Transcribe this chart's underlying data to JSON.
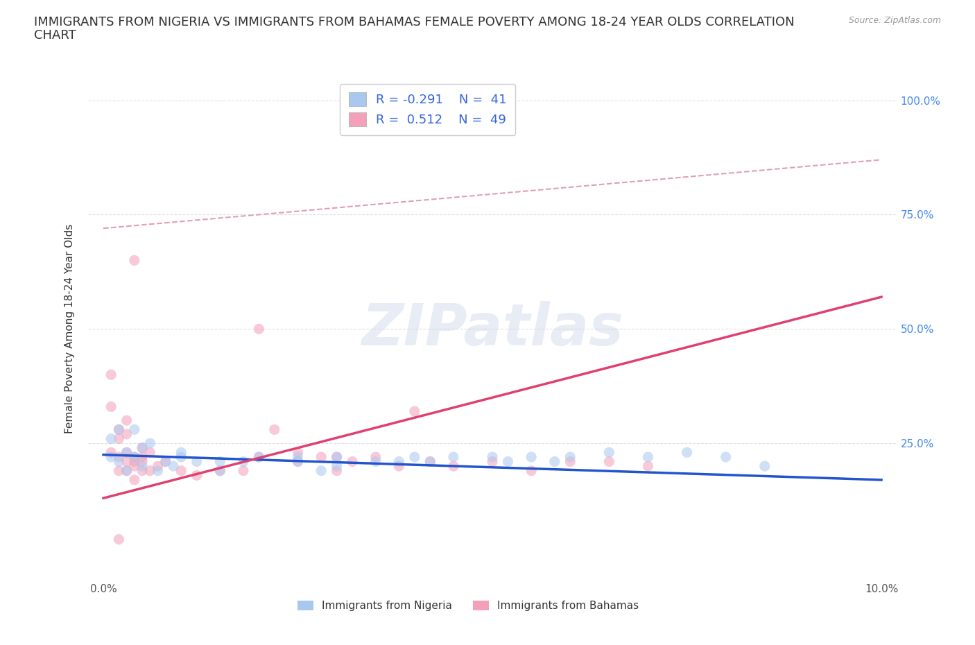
{
  "title": "IMMIGRANTS FROM NIGERIA VS IMMIGRANTS FROM BAHAMAS FEMALE POVERTY AMONG 18-24 YEAR OLDS CORRELATION\nCHART",
  "source": "Source: ZipAtlas.com",
  "ylabel": "Female Poverty Among 18-24 Year Olds",
  "watermark": "ZIPatlas",
  "nigeria_R": -0.291,
  "nigeria_N": 41,
  "bahamas_R": 0.512,
  "bahamas_N": 49,
  "nigeria_color": "#a8c8f0",
  "bahamas_color": "#f4a0b8",
  "nigeria_line_color": "#2255cc",
  "bahamas_line_color": "#e04070",
  "nigeria_scatter": [
    [
      0.001,
      0.22
    ],
    [
      0.001,
      0.26
    ],
    [
      0.002,
      0.28
    ],
    [
      0.002,
      0.21
    ],
    [
      0.003,
      0.19
    ],
    [
      0.003,
      0.23
    ],
    [
      0.004,
      0.22
    ],
    [
      0.004,
      0.28
    ],
    [
      0.005,
      0.2
    ],
    [
      0.005,
      0.24
    ],
    [
      0.006,
      0.25
    ],
    [
      0.007,
      0.19
    ],
    [
      0.008,
      0.21
    ],
    [
      0.009,
      0.2
    ],
    [
      0.01,
      0.22
    ],
    [
      0.01,
      0.23
    ],
    [
      0.012,
      0.21
    ],
    [
      0.015,
      0.21
    ],
    [
      0.015,
      0.19
    ],
    [
      0.018,
      0.21
    ],
    [
      0.02,
      0.22
    ],
    [
      0.025,
      0.21
    ],
    [
      0.025,
      0.22
    ],
    [
      0.028,
      0.19
    ],
    [
      0.03,
      0.22
    ],
    [
      0.03,
      0.2
    ],
    [
      0.035,
      0.21
    ],
    [
      0.038,
      0.21
    ],
    [
      0.04,
      0.22
    ],
    [
      0.042,
      0.21
    ],
    [
      0.045,
      0.22
    ],
    [
      0.05,
      0.22
    ],
    [
      0.052,
      0.21
    ],
    [
      0.055,
      0.22
    ],
    [
      0.058,
      0.21
    ],
    [
      0.06,
      0.22
    ],
    [
      0.065,
      0.23
    ],
    [
      0.07,
      0.22
    ],
    [
      0.075,
      0.23
    ],
    [
      0.08,
      0.22
    ],
    [
      0.085,
      0.2
    ]
  ],
  "bahamas_scatter": [
    [
      0.001,
      0.23
    ],
    [
      0.001,
      0.33
    ],
    [
      0.001,
      0.4
    ],
    [
      0.002,
      0.26
    ],
    [
      0.002,
      0.19
    ],
    [
      0.002,
      0.22
    ],
    [
      0.002,
      0.28
    ],
    [
      0.003,
      0.21
    ],
    [
      0.003,
      0.27
    ],
    [
      0.003,
      0.3
    ],
    [
      0.003,
      0.23
    ],
    [
      0.003,
      0.19
    ],
    [
      0.004,
      0.22
    ],
    [
      0.004,
      0.2
    ],
    [
      0.004,
      0.65
    ],
    [
      0.004,
      0.17
    ],
    [
      0.004,
      0.21
    ],
    [
      0.005,
      0.22
    ],
    [
      0.005,
      0.19
    ],
    [
      0.005,
      0.24
    ],
    [
      0.005,
      0.21
    ],
    [
      0.006,
      0.19
    ],
    [
      0.006,
      0.23
    ],
    [
      0.007,
      0.2
    ],
    [
      0.008,
      0.21
    ],
    [
      0.01,
      0.19
    ],
    [
      0.012,
      0.18
    ],
    [
      0.015,
      0.19
    ],
    [
      0.018,
      0.19
    ],
    [
      0.02,
      0.22
    ],
    [
      0.02,
      0.5
    ],
    [
      0.022,
      0.28
    ],
    [
      0.025,
      0.21
    ],
    [
      0.025,
      0.23
    ],
    [
      0.028,
      0.22
    ],
    [
      0.03,
      0.19
    ],
    [
      0.03,
      0.22
    ],
    [
      0.032,
      0.21
    ],
    [
      0.035,
      0.22
    ],
    [
      0.038,
      0.2
    ],
    [
      0.04,
      0.32
    ],
    [
      0.042,
      0.21
    ],
    [
      0.045,
      0.2
    ],
    [
      0.05,
      0.21
    ],
    [
      0.055,
      0.19
    ],
    [
      0.06,
      0.21
    ],
    [
      0.065,
      0.21
    ],
    [
      0.07,
      0.2
    ],
    [
      0.002,
      0.04
    ]
  ],
  "xlim": [
    -0.002,
    0.102
  ],
  "ylim": [
    -0.05,
    1.05
  ],
  "xticks": [
    0.0,
    0.02,
    0.04,
    0.06,
    0.08,
    0.1
  ],
  "xticklabels": [
    "0.0%",
    "",
    "",
    "",
    "",
    "10.0%"
  ],
  "yticks": [
    0.0,
    0.25,
    0.5,
    0.75,
    1.0
  ],
  "right_yticklabels": [
    "",
    "25.0%",
    "50.0%",
    "75.0%",
    "100.0%"
  ],
  "bg_color": "#ffffff",
  "title_fontsize": 13,
  "axis_fontsize": 11,
  "tick_fontsize": 11,
  "scatter_size": 120,
  "scatter_alpha": 0.55,
  "nigeria_trend_x": [
    0.0,
    0.1
  ],
  "nigeria_trend_y": [
    0.225,
    0.17
  ],
  "bahamas_trend_x": [
    0.0,
    0.1
  ],
  "bahamas_trend_y": [
    0.13,
    0.57
  ],
  "dashed_line_x": [
    0.0,
    0.1
  ],
  "dashed_line_y": [
    0.72,
    0.87
  ],
  "dashed_line_color": "#e0a0b0",
  "grid_line_y": [
    0.25,
    0.5,
    0.75,
    1.0
  ],
  "grid_color": "#e0e0e8",
  "legend_label_nigeria": "R = -0.291    N =  41",
  "legend_label_bahamas": "R =  0.512    N =  49",
  "bottom_legend_nigeria": "Immigrants from Nigeria",
  "bottom_legend_bahamas": "Immigrants from Bahamas"
}
